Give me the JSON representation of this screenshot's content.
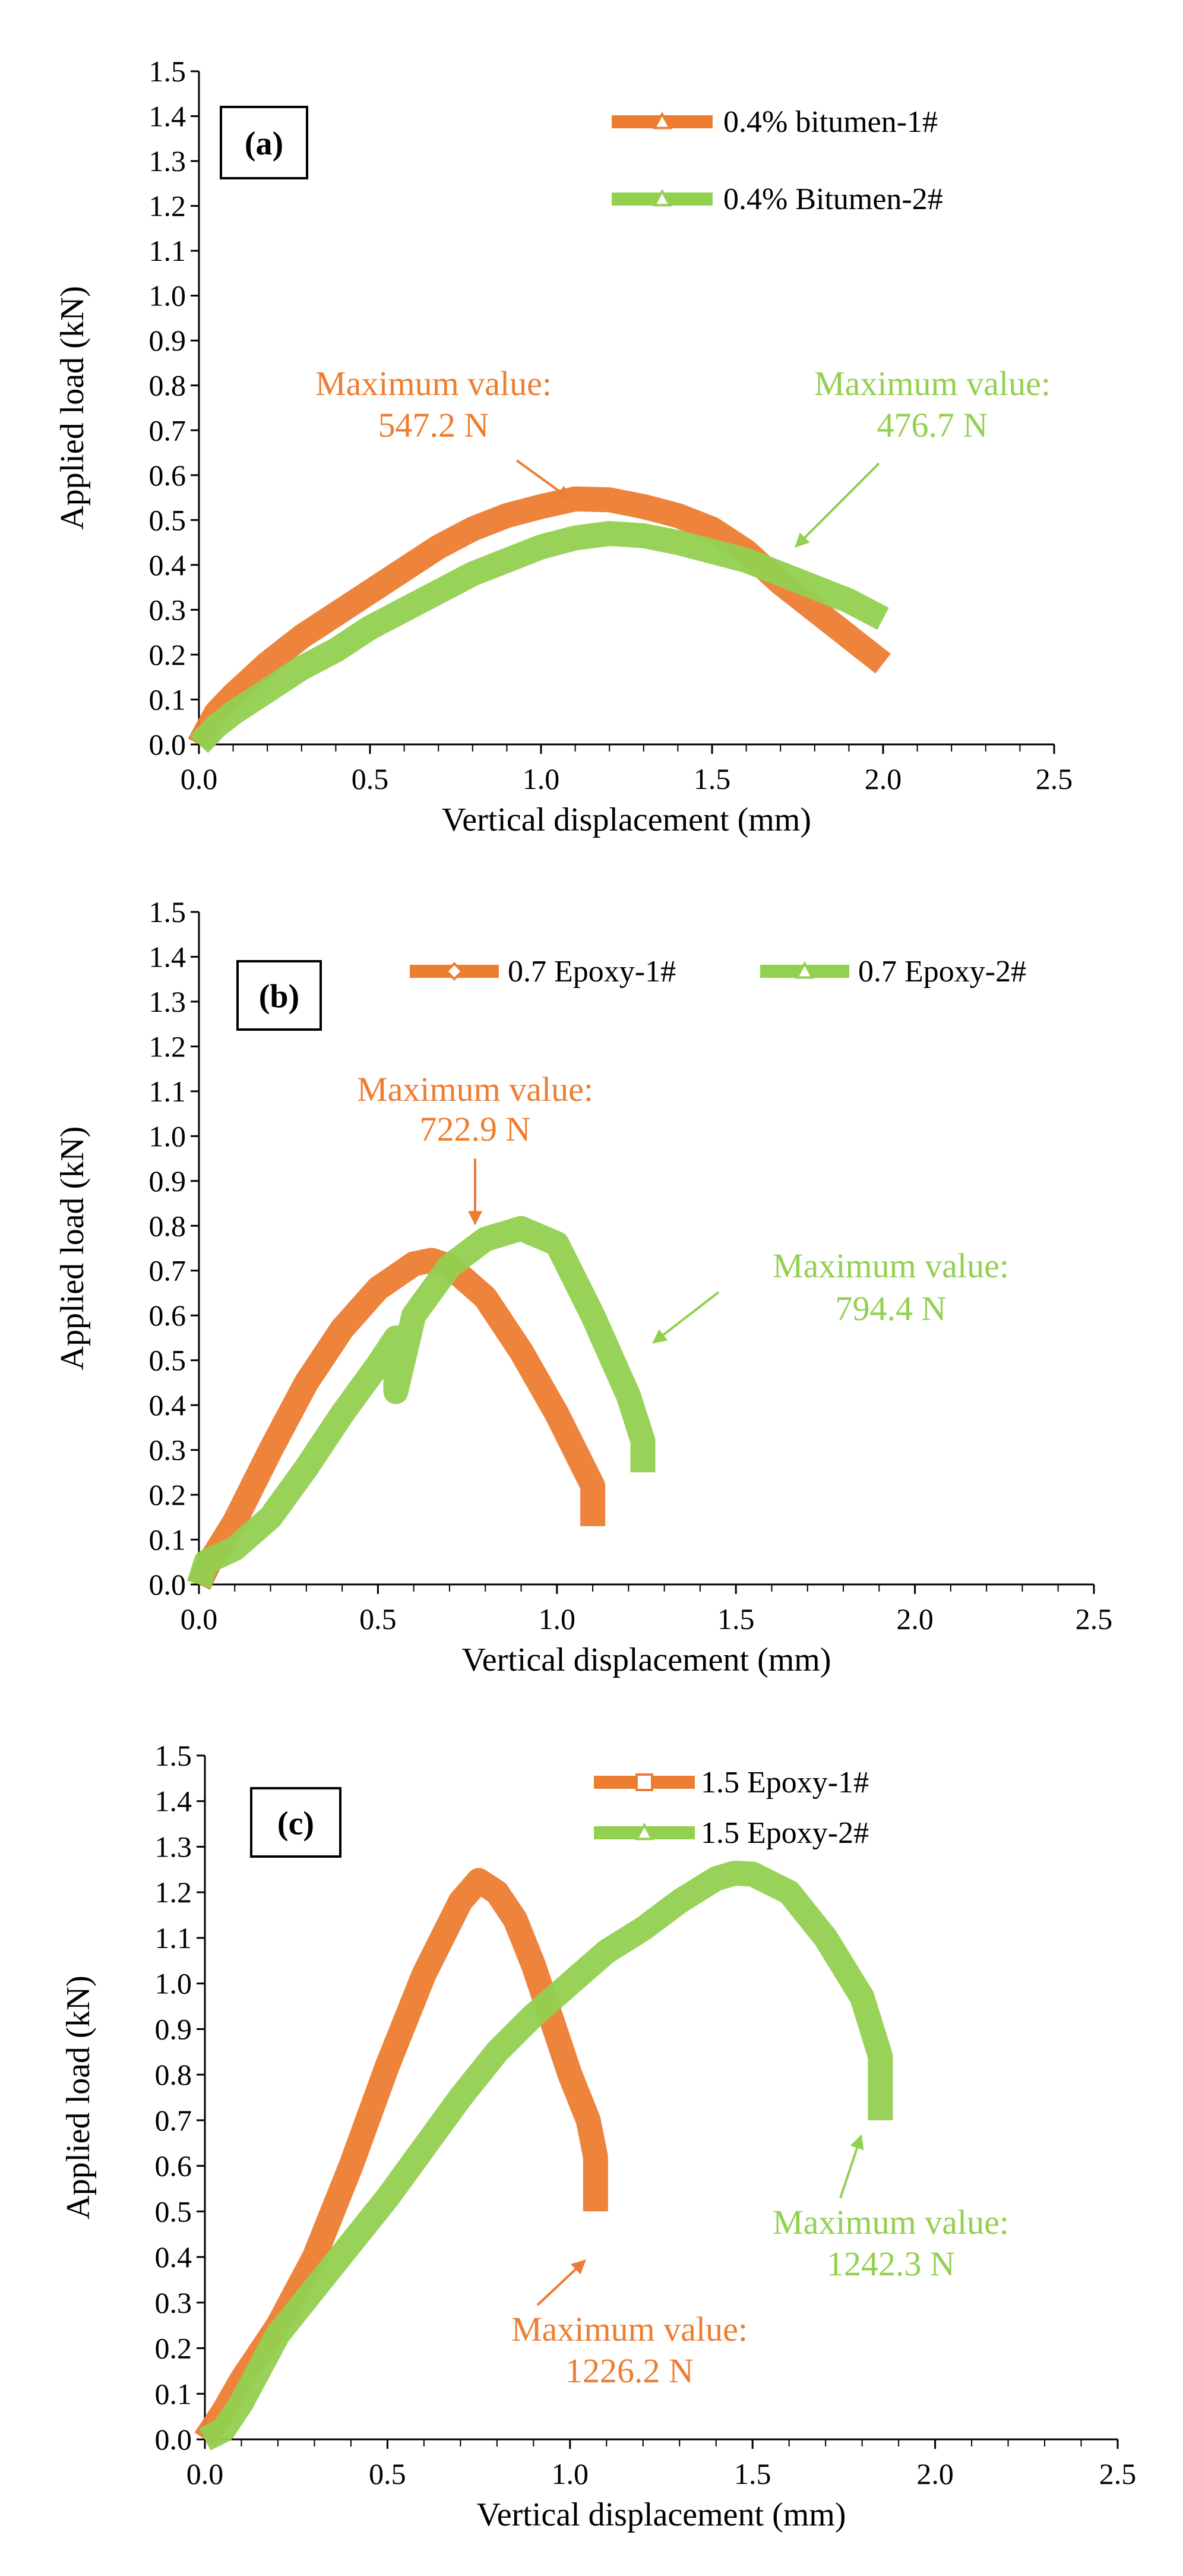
{
  "figure": {
    "background": "#ffffff"
  },
  "colors": {
    "series1": "#ED7D31",
    "series2": "#92D050",
    "axis": "#000000"
  },
  "chart_data": [
    {
      "panel": "a",
      "label": "(a)",
      "type": "line",
      "xlabel": "Vertical displacement (mm)",
      "ylabel": "Applied load (kN)",
      "xlim": [
        0.0,
        2.5
      ],
      "ylim": [
        0.0,
        1.5
      ],
      "x_ticks": [
        0.0,
        0.5,
        1.0,
        1.5,
        2.0,
        2.5
      ],
      "y_ticks": [
        0.0,
        0.1,
        0.2,
        0.3,
        0.4,
        0.5,
        0.6,
        0.7,
        0.8,
        0.9,
        1.0,
        1.1,
        1.2,
        1.3,
        1.4,
        1.5
      ],
      "grid": false,
      "legend_position": "top-right",
      "series": [
        {
          "name": "0.4% bitumen-1#",
          "marker": "triangle",
          "color": "#ED7D31",
          "x": [
            0.0,
            0.05,
            0.1,
            0.2,
            0.3,
            0.4,
            0.5,
            0.6,
            0.7,
            0.8,
            0.9,
            1.0,
            1.1,
            1.2,
            1.3,
            1.4,
            1.5,
            1.6,
            1.7,
            1.8,
            1.9,
            2.0
          ],
          "y": [
            0.0,
            0.07,
            0.11,
            0.18,
            0.24,
            0.29,
            0.34,
            0.39,
            0.44,
            0.48,
            0.51,
            0.53,
            0.547,
            0.545,
            0.53,
            0.51,
            0.48,
            0.43,
            0.36,
            0.3,
            0.24,
            0.18
          ]
        },
        {
          "name": "0.4% Bitumen-2#",
          "marker": "triangle",
          "color": "#92D050",
          "x": [
            0.0,
            0.05,
            0.1,
            0.2,
            0.3,
            0.4,
            0.5,
            0.6,
            0.7,
            0.8,
            0.9,
            1.0,
            1.1,
            1.2,
            1.3,
            1.4,
            1.5,
            1.6,
            1.7,
            1.8,
            1.9,
            2.0
          ],
          "y": [
            0.0,
            0.04,
            0.07,
            0.12,
            0.17,
            0.21,
            0.26,
            0.3,
            0.34,
            0.38,
            0.41,
            0.44,
            0.46,
            0.47,
            0.465,
            0.45,
            0.43,
            0.41,
            0.38,
            0.35,
            0.32,
            0.28
          ]
        }
      ],
      "annotations": [
        {
          "label": "Maximum value:",
          "value": "547.2 N",
          "color": "#ED7D31"
        },
        {
          "label": "Maximum value:",
          "value": "476.7 N",
          "color": "#92D050"
        }
      ]
    },
    {
      "panel": "b",
      "label": "(b)",
      "type": "line",
      "xlabel": "Vertical displacement (mm)",
      "ylabel": "Applied load (kN)",
      "xlim": [
        0.0,
        2.5
      ],
      "ylim": [
        0.0,
        1.5
      ],
      "x_ticks": [
        0.0,
        0.5,
        1.0,
        1.5,
        2.0,
        2.5
      ],
      "y_ticks": [
        0.0,
        0.1,
        0.2,
        0.3,
        0.4,
        0.5,
        0.6,
        0.7,
        0.8,
        0.9,
        1.0,
        1.1,
        1.2,
        1.3,
        1.4,
        1.5
      ],
      "grid": false,
      "legend_position": "top",
      "series": [
        {
          "name": "0.7 Epoxy-1#",
          "marker": "diamond",
          "color": "#ED7D31",
          "x": [
            0.0,
            0.03,
            0.1,
            0.2,
            0.3,
            0.4,
            0.5,
            0.6,
            0.65,
            0.7,
            0.8,
            0.9,
            1.0,
            1.05,
            1.1,
            1.1
          ],
          "y": [
            0.0,
            0.05,
            0.14,
            0.3,
            0.45,
            0.57,
            0.66,
            0.715,
            0.723,
            0.71,
            0.64,
            0.52,
            0.38,
            0.3,
            0.22,
            0.13
          ]
        },
        {
          "name": "0.7 Epoxy-2#",
          "marker": "triangle",
          "color": "#92D050",
          "x": [
            0.0,
            0.02,
            0.1,
            0.2,
            0.3,
            0.4,
            0.5,
            0.55,
            0.55,
            0.6,
            0.7,
            0.8,
            0.9,
            1.0,
            1.1,
            1.2,
            1.24,
            1.24
          ],
          "y": [
            0.0,
            0.05,
            0.08,
            0.15,
            0.26,
            0.38,
            0.49,
            0.55,
            0.43,
            0.6,
            0.71,
            0.77,
            0.794,
            0.76,
            0.6,
            0.42,
            0.32,
            0.25
          ]
        }
      ],
      "annotations": [
        {
          "label": "Maximum value:",
          "value": "722.9 N",
          "color": "#ED7D31"
        },
        {
          "label": "Maximum value:",
          "value": "794.4 N",
          "color": "#92D050"
        }
      ]
    },
    {
      "panel": "c",
      "label": "(c)",
      "type": "line",
      "xlabel": "Vertical displacement (mm)",
      "ylabel": "Applied load (kN)",
      "xlim": [
        0.0,
        2.5
      ],
      "ylim": [
        0.0,
        1.5
      ],
      "x_ticks": [
        0.0,
        0.5,
        1.0,
        1.5,
        2.0,
        2.5
      ],
      "y_ticks": [
        0.0,
        0.1,
        0.2,
        0.3,
        0.4,
        0.5,
        0.6,
        0.7,
        0.8,
        0.9,
        1.0,
        1.1,
        1.2,
        1.3,
        1.4,
        1.5
      ],
      "grid": false,
      "legend_position": "top",
      "series": [
        {
          "name": "1.5 Epoxy-1#",
          "marker": "square",
          "color": "#ED7D31",
          "x": [
            0.0,
            0.05,
            0.1,
            0.2,
            0.3,
            0.4,
            0.5,
            0.6,
            0.7,
            0.75,
            0.8,
            0.85,
            0.9,
            0.95,
            1.0,
            1.05,
            1.07,
            1.07
          ],
          "y": [
            0.0,
            0.06,
            0.13,
            0.25,
            0.4,
            0.6,
            0.82,
            1.02,
            1.18,
            1.226,
            1.2,
            1.14,
            1.04,
            0.92,
            0.8,
            0.7,
            0.62,
            0.5
          ]
        },
        {
          "name": "1.5 Epoxy-2#",
          "marker": "triangle",
          "color": "#92D050",
          "x": [
            0.0,
            0.05,
            0.1,
            0.2,
            0.3,
            0.4,
            0.5,
            0.6,
            0.7,
            0.8,
            0.9,
            1.0,
            1.1,
            1.2,
            1.3,
            1.4,
            1.45,
            1.5,
            1.6,
            1.7,
            1.8,
            1.85,
            1.85
          ],
          "y": [
            0.0,
            0.02,
            0.08,
            0.23,
            0.33,
            0.43,
            0.53,
            0.64,
            0.75,
            0.85,
            0.93,
            1.0,
            1.07,
            1.12,
            1.18,
            1.23,
            1.242,
            1.24,
            1.2,
            1.1,
            0.97,
            0.84,
            0.7
          ]
        }
      ],
      "annotations": [
        {
          "label": "Maximum value:",
          "value": "1242.3 N",
          "color": "#92D050"
        },
        {
          "label": "Maximum value:",
          "value": "1226.2 N",
          "color": "#ED7D31"
        }
      ]
    }
  ]
}
